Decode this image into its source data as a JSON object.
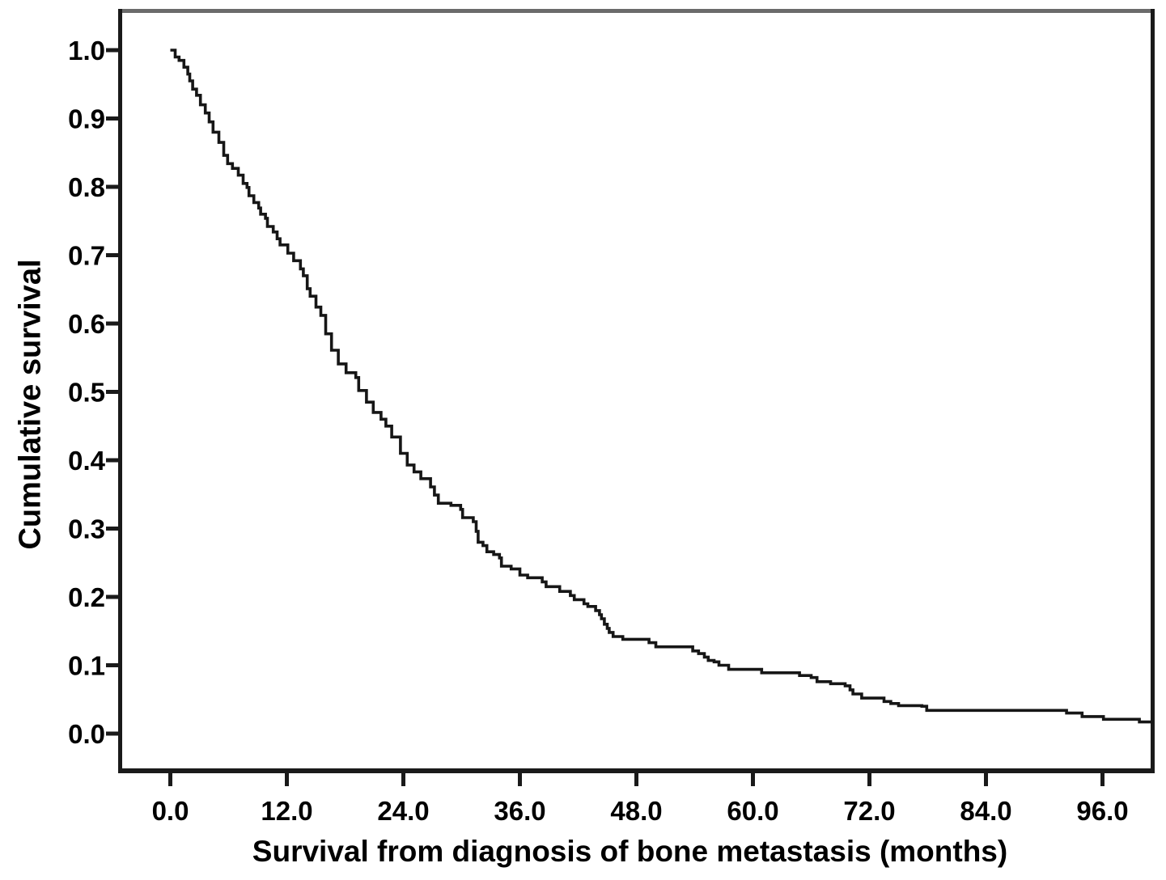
{
  "figure": {
    "background": "#ffffff"
  },
  "chart_data": {
    "type": "line",
    "subtype": "kaplan_meier_step",
    "title": "",
    "xlabel": "Survival from diagnosis of bone metastasis (months)",
    "ylabel": "Cumulative survival",
    "x_ticks": [
      0,
      12,
      24,
      36,
      48,
      60,
      72,
      84,
      96
    ],
    "x_tick_labels": [
      "0.0",
      "12.0",
      "24.0",
      "36.0",
      "48.0",
      "60.0",
      "72.0",
      "84.0",
      "96.0"
    ],
    "y_ticks": [
      0,
      0.1,
      0.2,
      0.3,
      0.4,
      0.5,
      0.6,
      0.7,
      0.8,
      0.9,
      1.0
    ],
    "y_tick_labels": [
      "0.0",
      "0.1",
      "0.2",
      "0.3",
      "0.4",
      "0.5",
      "0.6",
      "0.7",
      "0.8",
      "0.9",
      "1.0"
    ],
    "xlim": [
      -5.2,
      101.2
    ],
    "ylim": [
      -0.054,
      1.058
    ],
    "grid": false,
    "legend": null,
    "line_color": "#161616",
    "frame_color": "#1a1a1a",
    "frame_top_color": "#6b6b6b",
    "series": [
      {
        "name": "Cumulative survival",
        "step": true,
        "points": [
          [
            0,
            1.0
          ],
          [
            0.5,
            0.99
          ],
          [
            0.9,
            0.985
          ],
          [
            1.4,
            0.975
          ],
          [
            1.8,
            0.965
          ],
          [
            2.0,
            0.955
          ],
          [
            2.3,
            0.943
          ],
          [
            2.7,
            0.934
          ],
          [
            3.1,
            0.92
          ],
          [
            3.6,
            0.908
          ],
          [
            4.0,
            0.895
          ],
          [
            4.4,
            0.88
          ],
          [
            5.0,
            0.865
          ],
          [
            5.5,
            0.846
          ],
          [
            5.9,
            0.834
          ],
          [
            6.4,
            0.827
          ],
          [
            7.0,
            0.817
          ],
          [
            7.5,
            0.805
          ],
          [
            7.9,
            0.799
          ],
          [
            8.1,
            0.787
          ],
          [
            8.6,
            0.777
          ],
          [
            9.1,
            0.769
          ],
          [
            9.3,
            0.76
          ],
          [
            9.8,
            0.754
          ],
          [
            10.0,
            0.742
          ],
          [
            10.6,
            0.734
          ],
          [
            11.0,
            0.724
          ],
          [
            11.3,
            0.715
          ],
          [
            12.1,
            0.703
          ],
          [
            12.7,
            0.692
          ],
          [
            13.4,
            0.68
          ],
          [
            13.7,
            0.67
          ],
          [
            14.1,
            0.651
          ],
          [
            14.4,
            0.64
          ],
          [
            15.0,
            0.624
          ],
          [
            15.5,
            0.612
          ],
          [
            16.0,
            0.585
          ],
          [
            16.6,
            0.561
          ],
          [
            17.3,
            0.541
          ],
          [
            18.1,
            0.528
          ],
          [
            19.1,
            0.521
          ],
          [
            19.4,
            0.502
          ],
          [
            20.2,
            0.485
          ],
          [
            20.9,
            0.47
          ],
          [
            21.7,
            0.46
          ],
          [
            22.2,
            0.45
          ],
          [
            22.8,
            0.434
          ],
          [
            23.7,
            0.41
          ],
          [
            24.4,
            0.393
          ],
          [
            25.1,
            0.383
          ],
          [
            25.8,
            0.373
          ],
          [
            26.8,
            0.361
          ],
          [
            27.2,
            0.349
          ],
          [
            27.6,
            0.337
          ],
          [
            28.9,
            0.334
          ],
          [
            29.9,
            0.328
          ],
          [
            30.1,
            0.316
          ],
          [
            31.2,
            0.31
          ],
          [
            31.5,
            0.296
          ],
          [
            31.7,
            0.28
          ],
          [
            32.2,
            0.275
          ],
          [
            32.6,
            0.266
          ],
          [
            33.3,
            0.262
          ],
          [
            33.9,
            0.257
          ],
          [
            34.1,
            0.245
          ],
          [
            35.1,
            0.241
          ],
          [
            36.0,
            0.232
          ],
          [
            36.8,
            0.228
          ],
          [
            38.3,
            0.222
          ],
          [
            38.7,
            0.215
          ],
          [
            40.1,
            0.208
          ],
          [
            41.2,
            0.202
          ],
          [
            41.6,
            0.196
          ],
          [
            42.6,
            0.19
          ],
          [
            43.0,
            0.186
          ],
          [
            43.8,
            0.18
          ],
          [
            44.2,
            0.174
          ],
          [
            44.4,
            0.168
          ],
          [
            44.7,
            0.16
          ],
          [
            45.0,
            0.154
          ],
          [
            45.2,
            0.148
          ],
          [
            45.6,
            0.142
          ],
          [
            46.6,
            0.138
          ],
          [
            49.3,
            0.133
          ],
          [
            50.0,
            0.127
          ],
          [
            53.8,
            0.121
          ],
          [
            54.4,
            0.117
          ],
          [
            55.0,
            0.112
          ],
          [
            55.4,
            0.107
          ],
          [
            56.0,
            0.105
          ],
          [
            56.5,
            0.1
          ],
          [
            57.5,
            0.094
          ],
          [
            60.9,
            0.089
          ],
          [
            64.8,
            0.085
          ],
          [
            66.0,
            0.082
          ],
          [
            66.6,
            0.076
          ],
          [
            68.0,
            0.073
          ],
          [
            69.5,
            0.07
          ],
          [
            70.0,
            0.064
          ],
          [
            70.3,
            0.058
          ],
          [
            71.2,
            0.052
          ],
          [
            73.5,
            0.047
          ],
          [
            74.2,
            0.044
          ],
          [
            75.0,
            0.041
          ],
          [
            77.4,
            0.04
          ],
          [
            77.9,
            0.034
          ],
          [
            92.3,
            0.03
          ],
          [
            93.9,
            0.025
          ],
          [
            96.1,
            0.021
          ],
          [
            99.8,
            0.017
          ],
          [
            101.2,
            0.017
          ]
        ]
      }
    ]
  }
}
